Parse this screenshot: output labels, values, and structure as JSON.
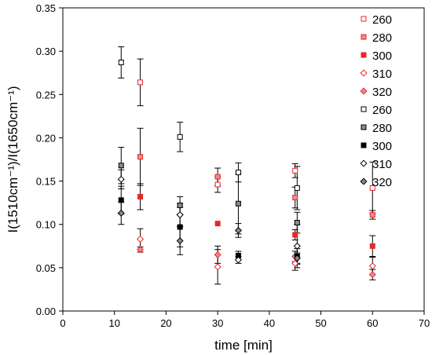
{
  "chart_data": {
    "type": "scatter",
    "xlabel": "time [min]",
    "ylabel": "I(1510cm⁻¹)/I(1650cm⁻¹)",
    "xlim": [
      0,
      70
    ],
    "ylim": [
      0,
      0.35
    ],
    "x_ticks": [
      "0",
      "10",
      "20",
      "30",
      "40",
      "50",
      "60",
      "70"
    ],
    "y_ticks": [
      "0.00",
      "0.05",
      "0.10",
      "0.15",
      "0.20",
      "0.25",
      "0.30",
      "0.35"
    ],
    "grid": false,
    "legend": "right",
    "series": [
      {
        "name": "260",
        "color": "#e8262a",
        "marker": "square-open",
        "points": [
          {
            "x": 15,
            "y": 0.264,
            "err": 0.027
          },
          {
            "x": 30,
            "y": 0.146,
            "err": 0.009
          },
          {
            "x": 45,
            "y": 0.162,
            "err": 0.008
          },
          {
            "x": 60,
            "y": 0.142,
            "err": 0.03
          }
        ]
      },
      {
        "name": "280",
        "color": "#e8262a",
        "marker": "square-gray",
        "points": [
          {
            "x": 15,
            "y": 0.178,
            "err": 0.033
          },
          {
            "x": 30,
            "y": 0.155,
            "err": 0.01
          },
          {
            "x": 45,
            "y": 0.131,
            "err": 0.012
          },
          {
            "x": 60,
            "y": 0.111,
            "err": 0.005
          }
        ]
      },
      {
        "name": "300",
        "color": "#e8262a",
        "marker": "square-filled",
        "points": [
          {
            "x": 15,
            "y": 0.132,
            "err": 0.015
          },
          {
            "x": 30,
            "y": 0.101,
            "err": 0.0
          },
          {
            "x": 45,
            "y": 0.088,
            "err": 0.006
          },
          {
            "x": 60,
            "y": 0.075,
            "err": 0.012
          }
        ]
      },
      {
        "name": "310",
        "color": "#e8262a",
        "marker": "diamond-open",
        "points": [
          {
            "x": 15,
            "y": 0.083,
            "err": 0.012
          },
          {
            "x": 30,
            "y": 0.051,
            "err": 0.02
          },
          {
            "x": 45,
            "y": 0.055,
            "err": 0.008
          },
          {
            "x": 60,
            "y": 0.052,
            "err": 0.01
          }
        ]
      },
      {
        "name": "320",
        "color": "#e8262a",
        "marker": "diamond-gray",
        "points": [
          {
            "x": 15,
            "y": 0.071,
            "err": 0.003
          },
          {
            "x": 30,
            "y": 0.065,
            "err": 0.01
          },
          {
            "x": 45,
            "y": 0.063,
            "err": 0.006
          },
          {
            "x": 60,
            "y": 0.042,
            "err": 0.006
          }
        ]
      },
      {
        "name": "260",
        "color": "#000000",
        "marker": "square-open",
        "points": [
          {
            "x": 11.3,
            "y": 0.287,
            "err": 0.018
          },
          {
            "x": 22.7,
            "y": 0.201,
            "err": 0.017
          },
          {
            "x": 34,
            "y": 0.16,
            "err": 0.011
          },
          {
            "x": 45.4,
            "y": 0.142,
            "err": 0.025
          }
        ]
      },
      {
        "name": "280",
        "color": "#000000",
        "marker": "square-gray",
        "points": [
          {
            "x": 11.3,
            "y": 0.168,
            "err": 0.021
          },
          {
            "x": 22.7,
            "y": 0.122,
            "err": 0.01
          },
          {
            "x": 34,
            "y": 0.124,
            "err": 0.035
          },
          {
            "x": 45.4,
            "y": 0.102,
            "err": 0.012
          }
        ]
      },
      {
        "name": "300",
        "color": "#000000",
        "marker": "square-filled",
        "points": [
          {
            "x": 11.3,
            "y": 0.128,
            "err": 0.016
          },
          {
            "x": 22.7,
            "y": 0.097,
            "err": 0.023
          },
          {
            "x": 34,
            "y": 0.064,
            "err": 0.005
          },
          {
            "x": 45.4,
            "y": 0.063,
            "err": 0.009
          }
        ]
      },
      {
        "name": "310",
        "color": "#000000",
        "marker": "diamond-open",
        "points": [
          {
            "x": 11.3,
            "y": 0.152,
            "err": 0.011
          },
          {
            "x": 22.7,
            "y": 0.111,
            "err": 0.013
          },
          {
            "x": 34,
            "y": 0.059,
            "err": 0.004
          },
          {
            "x": 45.4,
            "y": 0.075,
            "err": 0.025
          }
        ]
      },
      {
        "name": "320",
        "color": "#000000",
        "marker": "diamond-gray",
        "points": [
          {
            "x": 11.3,
            "y": 0.113,
            "err": 0.013
          },
          {
            "x": 22.7,
            "y": 0.081,
            "err": 0.016
          },
          {
            "x": 34,
            "y": 0.093,
            "err": 0.008
          },
          {
            "x": 45.4,
            "y": 0.061,
            "err": 0.006
          }
        ]
      }
    ]
  }
}
